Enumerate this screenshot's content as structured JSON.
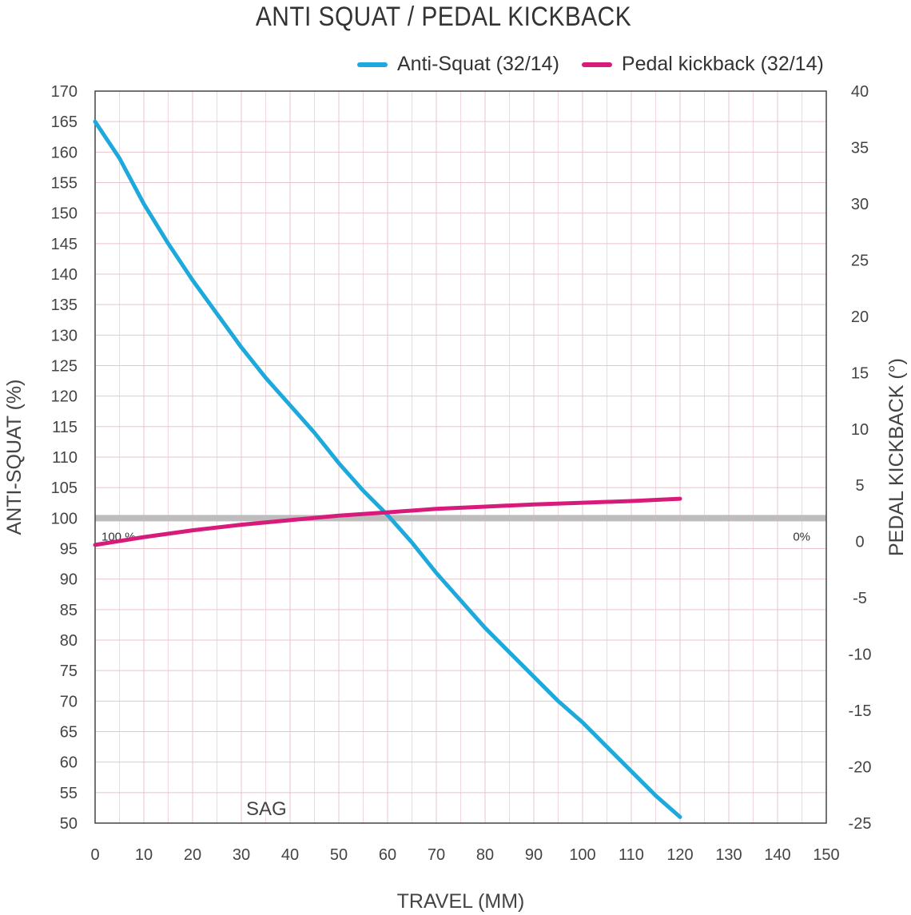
{
  "chart_data": {
    "type": "line",
    "title": "ANTI SQUAT / PEDAL KICKBACK",
    "xlabel": "TRAVEL (MM)",
    "ylabel_left": "ANTI-SQUAT (%)",
    "ylabel_right": "PEDAL KICKBACK (°)",
    "xlim": [
      0,
      150
    ],
    "ylim_left": [
      50,
      170
    ],
    "ylim_right": [
      -25,
      40
    ],
    "x_ticks": [
      "0",
      "10",
      "20",
      "30",
      "40",
      "50",
      "60",
      "70",
      "80",
      "90",
      "100",
      "110",
      "120",
      "130",
      "140",
      "150"
    ],
    "y_left_ticks": [
      "50",
      "55",
      "60",
      "65",
      "70",
      "75",
      "80",
      "85",
      "90",
      "95",
      "100",
      "105",
      "110",
      "115",
      "120",
      "125",
      "130",
      "135",
      "140",
      "145",
      "150",
      "155",
      "160",
      "165",
      "170"
    ],
    "y_right_ticks": [
      "-25",
      "-20",
      "-15",
      "-10",
      "-5",
      "0",
      "5",
      "10",
      "15",
      "20",
      "25",
      "30",
      "35",
      "40"
    ],
    "grid": true,
    "legend_position": "top-right",
    "reference_line": {
      "axis": "left",
      "value": 100,
      "color": "#bdbdbd"
    },
    "annotations": {
      "left": "100 %",
      "right": "0%",
      "sag": "SAG"
    },
    "series": [
      {
        "name": "Anti-Squat (32/14)",
        "axis": "left",
        "color": "#1ea9dc",
        "x": [
          0,
          5,
          10,
          15,
          20,
          25,
          30,
          35,
          40,
          45,
          50,
          55,
          60,
          65,
          70,
          75,
          80,
          85,
          90,
          95,
          100,
          105,
          110,
          115,
          120
        ],
        "y": [
          165,
          159,
          151.5,
          145,
          139,
          133.5,
          128,
          123,
          118.5,
          114,
          109,
          104.5,
          100.5,
          96,
          91,
          86.5,
          82,
          78,
          74,
          70,
          66.5,
          62.5,
          58.5,
          54.5,
          51
        ]
      },
      {
        "name": "Pedal kickback (32/14)",
        "axis": "right",
        "color": "#d81b7a",
        "x": [
          0,
          10,
          20,
          30,
          40,
          50,
          60,
          70,
          80,
          90,
          100,
          110,
          120
        ],
        "y": [
          -0.3,
          0.4,
          1.0,
          1.5,
          1.9,
          2.3,
          2.6,
          2.9,
          3.1,
          3.3,
          3.45,
          3.6,
          3.8
        ]
      }
    ]
  }
}
